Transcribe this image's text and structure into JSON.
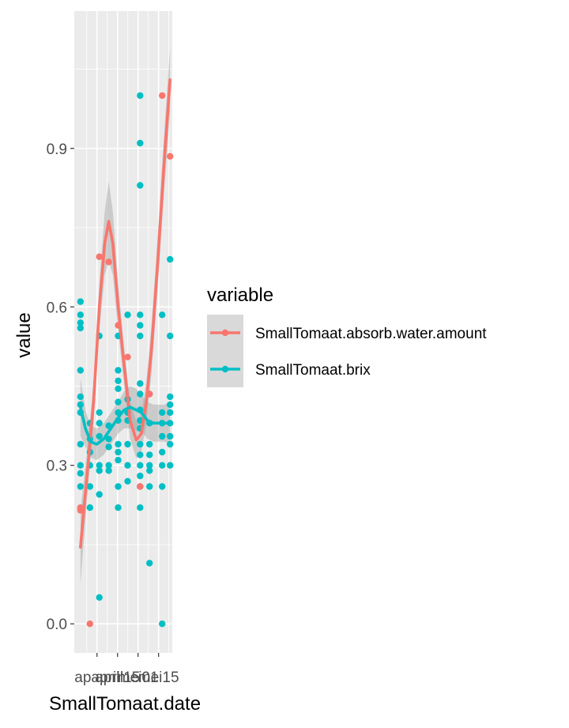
{
  "chart_data": {
    "type": "scatter",
    "title": "",
    "xlabel": "SmallTomaat.date",
    "ylabel": "value",
    "x_tick_labels": [
      "apapril",
      "april15",
      "mei01",
      "mei15"
    ],
    "x_tick_positions": [
      1.94,
      3.96,
      5.98,
      8.0
    ],
    "x_range": [
      -0.3,
      9.35
    ],
    "y_ticks": [
      0.0,
      0.3,
      0.6,
      0.9
    ],
    "y_tick_labels": [
      "0.0",
      "0.3",
      "0.6",
      "0.9"
    ],
    "y_range": [
      -0.055,
      1.16
    ],
    "grid": true,
    "legend": {
      "title": "variable",
      "position": "right",
      "entries": [
        "SmallTomaat.absorb.water.amount",
        "SmallTomaat.brix"
      ]
    },
    "colors": {
      "absorb": "#F8766D",
      "brix": "#00BFC4",
      "panel_bg": "#EBEBEB",
      "grid": "#FFFFFF",
      "ribbon": "#999999"
    },
    "series": [
      {
        "name": "SmallTomaat.absorb.water.amount",
        "points": [
          {
            "x": 0.31,
            "y": 0.22
          },
          {
            "x": 0.31,
            "y": 0.215
          },
          {
            "x": 1.24,
            "y": 0.0
          },
          {
            "x": 2.17,
            "y": 0.695
          },
          {
            "x": 3.09,
            "y": 0.685
          },
          {
            "x": 4.02,
            "y": 0.565
          },
          {
            "x": 4.95,
            "y": 0.505
          },
          {
            "x": 6.18,
            "y": 0.26
          },
          {
            "x": 7.11,
            "y": 0.435
          },
          {
            "x": 8.35,
            "y": 1.0
          },
          {
            "x": 9.13,
            "y": 0.885
          }
        ],
        "smooth": [
          {
            "x": 0.31,
            "y": 0.145
          },
          {
            "x": 1.0,
            "y": 0.29
          },
          {
            "x": 1.6,
            "y": 0.42
          },
          {
            "x": 2.17,
            "y": 0.6
          },
          {
            "x": 2.7,
            "y": 0.72
          },
          {
            "x": 3.09,
            "y": 0.762
          },
          {
            "x": 3.5,
            "y": 0.72
          },
          {
            "x": 4.02,
            "y": 0.6
          },
          {
            "x": 4.6,
            "y": 0.49
          },
          {
            "x": 5.2,
            "y": 0.385
          },
          {
            "x": 5.8,
            "y": 0.348
          },
          {
            "x": 6.3,
            "y": 0.36
          },
          {
            "x": 6.8,
            "y": 0.42
          },
          {
            "x": 7.3,
            "y": 0.52
          },
          {
            "x": 7.9,
            "y": 0.68
          },
          {
            "x": 8.5,
            "y": 0.86
          },
          {
            "x": 9.13,
            "y": 1.03
          }
        ],
        "ribbon_halfwidth": [
          0.07,
          0.045,
          0.04,
          0.045,
          0.06,
          0.075,
          0.06,
          0.045,
          0.035,
          0.035,
          0.035,
          0.035,
          0.04,
          0.045,
          0.05,
          0.055,
          0.06
        ]
      },
      {
        "name": "SmallTomaat.brix",
        "points": [
          {
            "x": 0.31,
            "y": 0.61
          },
          {
            "x": 0.31,
            "y": 0.585
          },
          {
            "x": 0.31,
            "y": 0.57
          },
          {
            "x": 0.31,
            "y": 0.56
          },
          {
            "x": 0.31,
            "y": 0.48
          },
          {
            "x": 0.31,
            "y": 0.43
          },
          {
            "x": 0.31,
            "y": 0.415
          },
          {
            "x": 0.31,
            "y": 0.4
          },
          {
            "x": 0.31,
            "y": 0.34
          },
          {
            "x": 0.31,
            "y": 0.3
          },
          {
            "x": 0.31,
            "y": 0.285
          },
          {
            "x": 0.31,
            "y": 0.26
          },
          {
            "x": 1.24,
            "y": 0.38
          },
          {
            "x": 1.24,
            "y": 0.35
          },
          {
            "x": 1.24,
            "y": 0.325
          },
          {
            "x": 1.24,
            "y": 0.3
          },
          {
            "x": 1.24,
            "y": 0.26
          },
          {
            "x": 1.24,
            "y": 0.22
          },
          {
            "x": 2.17,
            "y": 0.545
          },
          {
            "x": 2.17,
            "y": 0.4
          },
          {
            "x": 2.17,
            "y": 0.38
          },
          {
            "x": 2.17,
            "y": 0.355
          },
          {
            "x": 2.17,
            "y": 0.3
          },
          {
            "x": 2.17,
            "y": 0.29
          },
          {
            "x": 2.17,
            "y": 0.245
          },
          {
            "x": 2.17,
            "y": 0.05
          },
          {
            "x": 3.09,
            "y": 0.375
          },
          {
            "x": 3.09,
            "y": 0.35
          },
          {
            "x": 3.09,
            "y": 0.335
          },
          {
            "x": 3.09,
            "y": 0.3
          },
          {
            "x": 3.09,
            "y": 0.29
          },
          {
            "x": 4.02,
            "y": 0.545
          },
          {
            "x": 4.02,
            "y": 0.48
          },
          {
            "x": 4.02,
            "y": 0.46
          },
          {
            "x": 4.02,
            "y": 0.445
          },
          {
            "x": 4.02,
            "y": 0.42
          },
          {
            "x": 4.02,
            "y": 0.4
          },
          {
            "x": 4.02,
            "y": 0.385
          },
          {
            "x": 4.02,
            "y": 0.34
          },
          {
            "x": 4.02,
            "y": 0.325
          },
          {
            "x": 4.02,
            "y": 0.31
          },
          {
            "x": 4.02,
            "y": 0.26
          },
          {
            "x": 4.02,
            "y": 0.22
          },
          {
            "x": 4.95,
            "y": 0.585
          },
          {
            "x": 4.95,
            "y": 0.425
          },
          {
            "x": 4.95,
            "y": 0.4
          },
          {
            "x": 4.95,
            "y": 0.385
          },
          {
            "x": 4.95,
            "y": 0.34
          },
          {
            "x": 4.95,
            "y": 0.3
          },
          {
            "x": 4.95,
            "y": 0.27
          },
          {
            "x": 6.18,
            "y": 1.0
          },
          {
            "x": 6.18,
            "y": 0.91
          },
          {
            "x": 6.18,
            "y": 0.83
          },
          {
            "x": 6.18,
            "y": 0.585
          },
          {
            "x": 6.18,
            "y": 0.565
          },
          {
            "x": 6.18,
            "y": 0.545
          },
          {
            "x": 6.18,
            "y": 0.455
          },
          {
            "x": 6.18,
            "y": 0.435
          },
          {
            "x": 6.18,
            "y": 0.405
          },
          {
            "x": 6.18,
            "y": 0.385
          },
          {
            "x": 6.18,
            "y": 0.37
          },
          {
            "x": 6.18,
            "y": 0.34
          },
          {
            "x": 6.18,
            "y": 0.32
          },
          {
            "x": 6.18,
            "y": 0.3
          },
          {
            "x": 6.18,
            "y": 0.28
          },
          {
            "x": 6.18,
            "y": 0.26
          },
          {
            "x": 6.18,
            "y": 0.22
          },
          {
            "x": 7.11,
            "y": 0.435
          },
          {
            "x": 7.11,
            "y": 0.38
          },
          {
            "x": 7.11,
            "y": 0.34
          },
          {
            "x": 7.11,
            "y": 0.32
          },
          {
            "x": 7.11,
            "y": 0.3
          },
          {
            "x": 7.11,
            "y": 0.29
          },
          {
            "x": 7.11,
            "y": 0.26
          },
          {
            "x": 7.11,
            "y": 0.115
          },
          {
            "x": 8.35,
            "y": 0.585
          },
          {
            "x": 8.35,
            "y": 0.4
          },
          {
            "x": 8.35,
            "y": 0.38
          },
          {
            "x": 8.35,
            "y": 0.355
          },
          {
            "x": 8.35,
            "y": 0.325
          },
          {
            "x": 8.35,
            "y": 0.3
          },
          {
            "x": 8.35,
            "y": 0.26
          },
          {
            "x": 8.35,
            "y": 0.0
          },
          {
            "x": 9.13,
            "y": 0.69
          },
          {
            "x": 9.13,
            "y": 0.545
          },
          {
            "x": 9.13,
            "y": 0.43
          },
          {
            "x": 9.13,
            "y": 0.415
          },
          {
            "x": 9.13,
            "y": 0.4
          },
          {
            "x": 9.13,
            "y": 0.38
          },
          {
            "x": 9.13,
            "y": 0.355
          },
          {
            "x": 9.13,
            "y": 0.34
          },
          {
            "x": 9.13,
            "y": 0.3
          }
        ],
        "smooth": [
          {
            "x": 0.31,
            "y": 0.41
          },
          {
            "x": 0.8,
            "y": 0.37
          },
          {
            "x": 1.3,
            "y": 0.345
          },
          {
            "x": 1.9,
            "y": 0.34
          },
          {
            "x": 2.6,
            "y": 0.35
          },
          {
            "x": 3.3,
            "y": 0.37
          },
          {
            "x": 4.0,
            "y": 0.39
          },
          {
            "x": 4.6,
            "y": 0.405
          },
          {
            "x": 5.2,
            "y": 0.41
          },
          {
            "x": 5.8,
            "y": 0.405
          },
          {
            "x": 6.3,
            "y": 0.4
          },
          {
            "x": 6.9,
            "y": 0.385
          },
          {
            "x": 7.5,
            "y": 0.38
          },
          {
            "x": 8.1,
            "y": 0.38
          },
          {
            "x": 8.6,
            "y": 0.38
          },
          {
            "x": 9.13,
            "y": 0.38
          }
        ],
        "ribbon_halfwidth": [
          0.055,
          0.035,
          0.03,
          0.03,
          0.03,
          0.03,
          0.03,
          0.035,
          0.04,
          0.04,
          0.035,
          0.035,
          0.035,
          0.035,
          0.035,
          0.04
        ]
      }
    ]
  }
}
